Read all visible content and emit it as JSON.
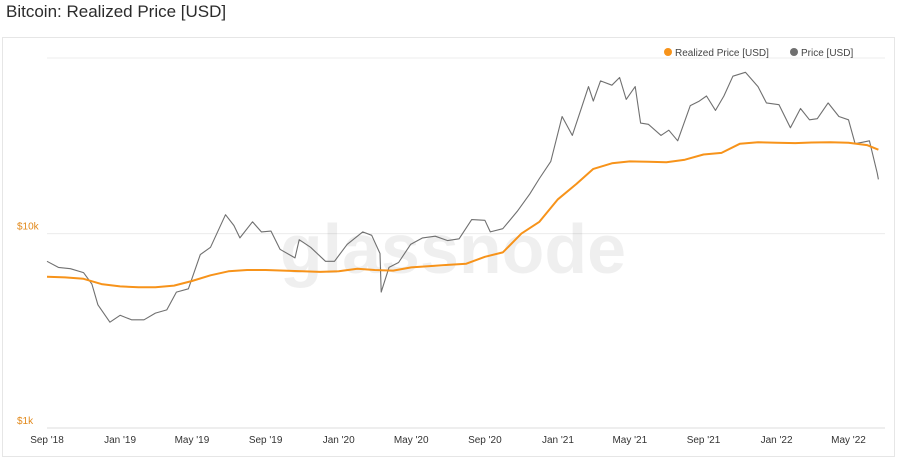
{
  "page": {
    "title": "Bitcoin: Realized Price [USD]"
  },
  "chart_data": {
    "type": "line",
    "title": "Bitcoin: Realized Price [USD]",
    "watermark": "glassnode",
    "yscale": "log",
    "ylim": [
      1000,
      80000
    ],
    "xlim": [
      "2018-09-01",
      "2022-07-01"
    ],
    "grid": true,
    "legend_position": "top-right",
    "x_ticks": [
      "Sep '18",
      "Jan '19",
      "May '19",
      "Sep '19",
      "Jan '20",
      "May '20",
      "Sep '20",
      "Jan '21",
      "May '21",
      "Sep '21",
      "Jan '22",
      "May '22"
    ],
    "x_tick_dates": [
      "2018-09-01",
      "2019-01-01",
      "2019-05-01",
      "2019-09-01",
      "2020-01-01",
      "2020-05-01",
      "2020-09-01",
      "2021-01-01",
      "2021-05-01",
      "2021-09-01",
      "2022-01-01",
      "2022-05-01"
    ],
    "y_ticks": [
      {
        "label": "$1k",
        "value": 1000
      },
      {
        "label": "$10k",
        "value": 10000
      }
    ],
    "series": [
      {
        "name": "Realized Price [USD]",
        "color": "#f7931a",
        "x": [
          "2018-09-01",
          "2018-10-01",
          "2018-11-01",
          "2018-12-01",
          "2019-01-01",
          "2019-02-01",
          "2019-03-01",
          "2019-04-01",
          "2019-05-01",
          "2019-06-01",
          "2019-07-01",
          "2019-08-01",
          "2019-09-01",
          "2019-10-01",
          "2019-11-01",
          "2019-12-01",
          "2020-01-01",
          "2020-02-01",
          "2020-03-01",
          "2020-04-01",
          "2020-05-01",
          "2020-06-01",
          "2020-07-01",
          "2020-08-01",
          "2020-09-01",
          "2020-10-01",
          "2020-11-01",
          "2020-12-01",
          "2021-01-01",
          "2021-02-01",
          "2021-03-01",
          "2021-04-01",
          "2021-05-01",
          "2021-06-01",
          "2021-07-01",
          "2021-08-01",
          "2021-09-01",
          "2021-10-01",
          "2021-11-01",
          "2021-12-01",
          "2022-01-01",
          "2022-02-01",
          "2022-03-01",
          "2022-04-01",
          "2022-05-01",
          "2022-06-01",
          "2022-06-20"
        ],
        "y": [
          6000,
          5950,
          5850,
          5500,
          5350,
          5300,
          5300,
          5400,
          5700,
          6100,
          6400,
          6500,
          6500,
          6450,
          6400,
          6350,
          6400,
          6600,
          6500,
          6450,
          6700,
          6800,
          6900,
          7000,
          7600,
          8000,
          10000,
          11500,
          15000,
          18000,
          21500,
          23000,
          23500,
          23400,
          23300,
          24000,
          25500,
          26000,
          29000,
          29500,
          29300,
          29200,
          29400,
          29500,
          29300,
          28500,
          27000
        ]
      },
      {
        "name": "Price [USD]",
        "color": "#707070",
        "x": [
          "2018-09-01",
          "2018-09-20",
          "2018-10-10",
          "2018-11-01",
          "2018-11-15",
          "2018-11-25",
          "2018-12-15",
          "2019-01-01",
          "2019-01-20",
          "2019-02-10",
          "2019-03-01",
          "2019-03-20",
          "2019-04-05",
          "2019-04-25",
          "2019-05-15",
          "2019-06-01",
          "2019-06-26",
          "2019-07-10",
          "2019-07-20",
          "2019-08-10",
          "2019-08-25",
          "2019-09-10",
          "2019-09-25",
          "2019-10-20",
          "2019-10-27",
          "2019-11-15",
          "2019-12-10",
          "2019-12-25",
          "2020-01-15",
          "2020-02-10",
          "2020-02-25",
          "2020-03-10",
          "2020-03-12",
          "2020-03-25",
          "2020-04-10",
          "2020-04-30",
          "2020-05-20",
          "2020-06-10",
          "2020-07-01",
          "2020-07-20",
          "2020-08-10",
          "2020-09-01",
          "2020-09-10",
          "2020-10-01",
          "2020-10-25",
          "2020-11-15",
          "2020-12-01",
          "2020-12-20",
          "2021-01-08",
          "2021-01-25",
          "2021-02-10",
          "2021-02-21",
          "2021-03-01",
          "2021-03-13",
          "2021-04-01",
          "2021-04-14",
          "2021-04-25",
          "2021-05-10",
          "2021-05-19",
          "2021-06-01",
          "2021-06-22",
          "2021-07-05",
          "2021-07-20",
          "2021-08-10",
          "2021-08-25",
          "2021-09-06",
          "2021-09-21",
          "2021-10-05",
          "2021-10-20",
          "2021-11-10",
          "2021-12-01",
          "2021-12-15",
          "2022-01-05",
          "2022-01-24",
          "2022-02-10",
          "2022-02-25",
          "2022-03-10",
          "2022-03-28",
          "2022-04-15",
          "2022-05-01",
          "2022-05-12",
          "2022-05-25",
          "2022-06-05",
          "2022-06-18",
          "2022-06-20"
        ],
        "y": [
          7200,
          6700,
          6600,
          6300,
          5500,
          4300,
          3500,
          3800,
          3600,
          3600,
          3900,
          4050,
          5000,
          5200,
          7800,
          8500,
          12500,
          11000,
          9500,
          11500,
          10200,
          10300,
          8300,
          7500,
          9300,
          8500,
          7200,
          7200,
          8800,
          10200,
          9800,
          7900,
          5000,
          6700,
          7100,
          8800,
          9500,
          9700,
          9200,
          9400,
          11800,
          11700,
          10200,
          10600,
          13000,
          16000,
          19200,
          23500,
          40000,
          32000,
          45000,
          57000,
          48000,
          61000,
          58000,
          63500,
          49000,
          57000,
          37000,
          36500,
          32000,
          34000,
          30000,
          45500,
          48000,
          51000,
          43000,
          51000,
          64500,
          67500,
          57000,
          47000,
          46000,
          35000,
          44000,
          38500,
          39000,
          47000,
          40000,
          38500,
          29000,
          29500,
          30000,
          20500,
          19000
        ]
      }
    ]
  }
}
